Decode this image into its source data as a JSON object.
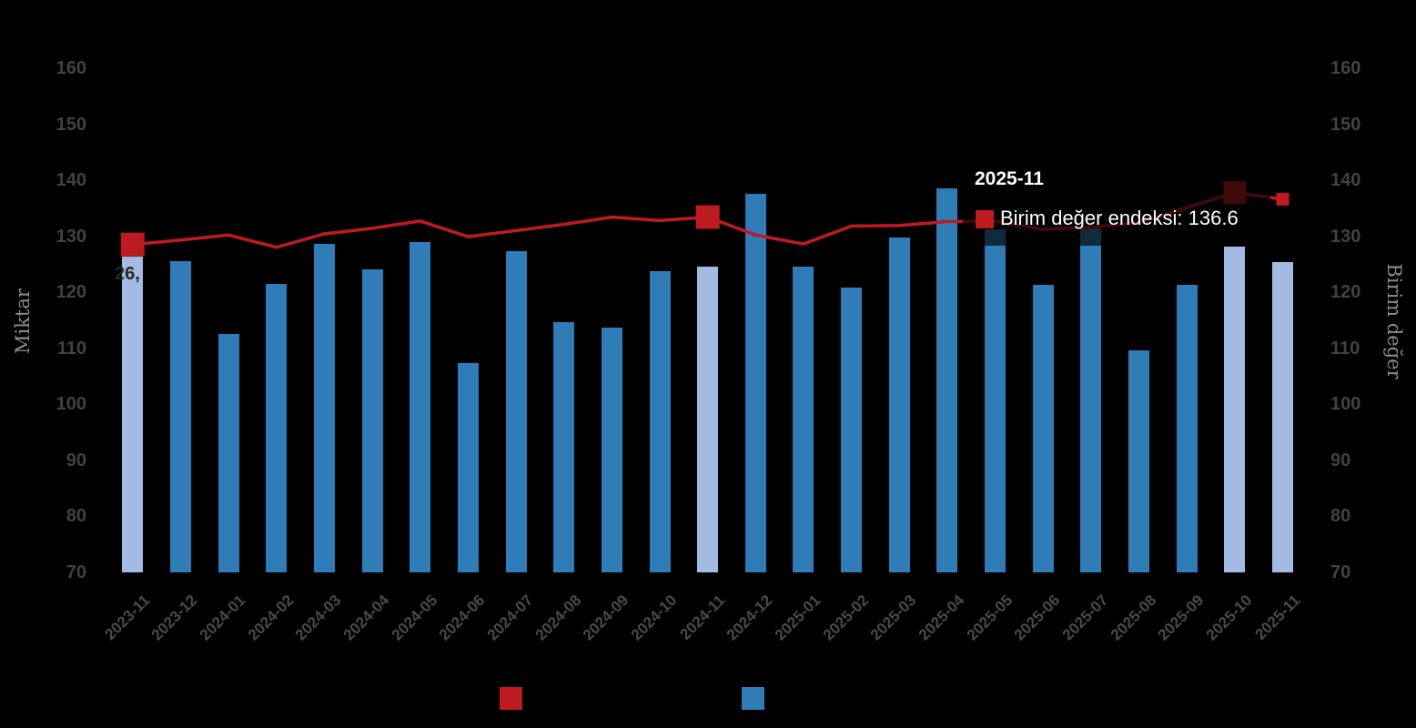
{
  "chart_data": {
    "type": "bar+line combo, dual y-axis",
    "categories": [
      "2023-11",
      "2023-12",
      "2024-01",
      "2024-02",
      "2024-03",
      "2024-04",
      "2024-05",
      "2024-06",
      "2024-07",
      "2024-08",
      "2024-09",
      "2024-10",
      "2024-11",
      "2024-12",
      "2025-01",
      "2025-02",
      "2025-03",
      "2025-04",
      "2025-05",
      "2025-06",
      "2025-07",
      "2025-08",
      "2025-09",
      "2025-10",
      "2025-11"
    ],
    "series": [
      {
        "name": "",
        "type": "bar",
        "axis": "left",
        "values": [
          126.3,
          125.6,
          112.6,
          121.4,
          128.6,
          124.1,
          129.0,
          107.3,
          127.3,
          114.6,
          113.6,
          123.7,
          124.6,
          137.6,
          124.6,
          120.8,
          129.8,
          138.6,
          131.3,
          121.3,
          131.4,
          109.6,
          121.3,
          128.1,
          125.3
        ],
        "color": "#307cb6",
        "highlight_color": "#a3bbe3",
        "highlighted_categories": [
          "2023-11",
          "2024-11",
          "2025-10",
          "2025-11"
        ]
      },
      {
        "name": "Birim değer endeksi",
        "type": "line",
        "axis": "right",
        "values": [
          128.5,
          129.3,
          130.2,
          128.0,
          130.4,
          131.4,
          132.7,
          129.9,
          131.0,
          132.1,
          133.4,
          132.8,
          133.4,
          130.2,
          128.6,
          131.8,
          131.9,
          132.6,
          132.7,
          131.2,
          131.6,
          132.4,
          135.1,
          137.8,
          136.6
        ],
        "color": "#bc1b21",
        "marker_categories": [
          "2023-11",
          "2024-11",
          "2025-10",
          "2025-11"
        ],
        "marker_sizes": [
          26,
          26,
          25,
          14
        ]
      }
    ],
    "y_left": {
      "title": "Miktar",
      "min": 70,
      "max": 160,
      "tick_step": 10
    },
    "y_right": {
      "title": "Birim değer",
      "min": 70,
      "max": 160,
      "tick_step": 10
    },
    "grid": "off",
    "first_bar_label": "26,",
    "tooltip": {
      "title": "2025-11",
      "series_label": "Birim değer endeksi",
      "value": "136.6",
      "text": "Birim değer endeksi: 136.6",
      "swatch_color": "#bc1b21"
    },
    "legend": {
      "position": "bottom",
      "items": [
        {
          "label": "",
          "swatch_color": "#bc1b21"
        },
        {
          "label": "",
          "swatch_color": "#307cb6"
        }
      ]
    }
  }
}
